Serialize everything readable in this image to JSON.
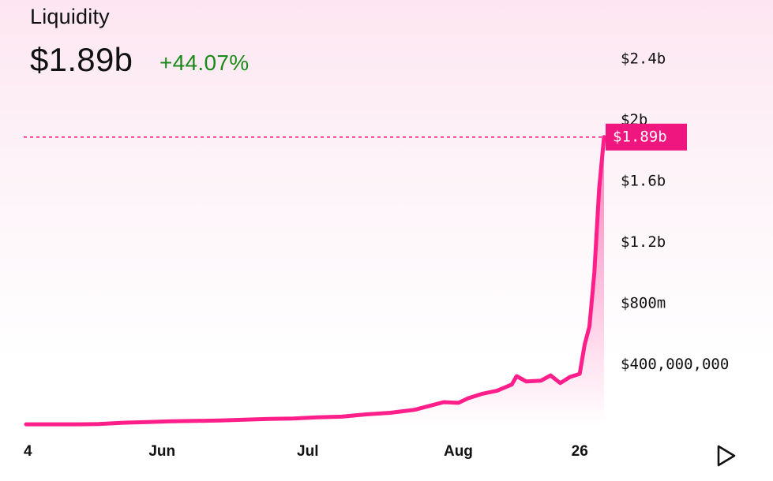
{
  "header": {
    "title": "Liquidity",
    "value": "$1.89b",
    "change": "+44.07%"
  },
  "colors": {
    "line": "#ff1e8a",
    "badge": "#f0167f",
    "change": "#1a8a1a"
  },
  "current_badge": "$1.89b",
  "icons": {
    "play": "play-icon"
  },
  "chart_data": {
    "type": "area",
    "title": "Liquidity",
    "y_ticks": [
      {
        "label": "$400,000,000",
        "value": 400000000
      },
      {
        "label": "$800m",
        "value": 800000000
      },
      {
        "label": "$1.2b",
        "value": 1200000000
      },
      {
        "label": "$1.6b",
        "value": 1600000000
      },
      {
        "label": "$2b",
        "value": 2000000000
      },
      {
        "label": "$2.4b",
        "value": 2400000000
      }
    ],
    "x_ticks": [
      {
        "label": "4",
        "x": "May 4"
      },
      {
        "label": "Jun",
        "x": "Jun 1"
      },
      {
        "label": "Jul",
        "x": "Jul 1"
      },
      {
        "label": "Aug",
        "x": "Aug 1"
      },
      {
        "label": "26",
        "x": "Aug 26"
      }
    ],
    "ylim": [
      0,
      2400000000
    ],
    "current_value": 1890000000,
    "series": [
      {
        "values": [
          {
            "x": "May 4",
            "y": 10000000
          },
          {
            "x": "May 10",
            "y": 10000000
          },
          {
            "x": "May 15",
            "y": 10000000
          },
          {
            "x": "May 19",
            "y": 12000000
          },
          {
            "x": "May 24",
            "y": 20000000
          },
          {
            "x": "May 29",
            "y": 25000000
          },
          {
            "x": "Jun 3",
            "y": 30000000
          },
          {
            "x": "Jun 8",
            "y": 32000000
          },
          {
            "x": "Jun 13",
            "y": 35000000
          },
          {
            "x": "Jun 18",
            "y": 40000000
          },
          {
            "x": "Jun 23",
            "y": 45000000
          },
          {
            "x": "Jun 28",
            "y": 48000000
          },
          {
            "x": "Jul 3",
            "y": 55000000
          },
          {
            "x": "Jul 8",
            "y": 60000000
          },
          {
            "x": "Jul 13",
            "y": 75000000
          },
          {
            "x": "Jul 18",
            "y": 85000000
          },
          {
            "x": "Jul 23",
            "y": 105000000
          },
          {
            "x": "Jul 26",
            "y": 130000000
          },
          {
            "x": "Jul 29",
            "y": 155000000
          },
          {
            "x": "Aug 1",
            "y": 150000000
          },
          {
            "x": "Aug 3",
            "y": 180000000
          },
          {
            "x": "Aug 6",
            "y": 210000000
          },
          {
            "x": "Aug 9",
            "y": 230000000
          },
          {
            "x": "Aug 12",
            "y": 270000000
          },
          {
            "x": "Aug 13",
            "y": 325000000
          },
          {
            "x": "Aug 15",
            "y": 290000000
          },
          {
            "x": "Aug 18",
            "y": 295000000
          },
          {
            "x": "Aug 20",
            "y": 330000000
          },
          {
            "x": "Aug 22",
            "y": 280000000
          },
          {
            "x": "Aug 24",
            "y": 320000000
          },
          {
            "x": "Aug 25",
            "y": 330000000
          },
          {
            "x": "Aug 26",
            "y": 340000000
          },
          {
            "x": "Aug 27",
            "y": 530000000
          },
          {
            "x": "Aug 28",
            "y": 650000000
          },
          {
            "x": "Aug 29",
            "y": 1000000000
          },
          {
            "x": "Aug 30",
            "y": 1550000000
          },
          {
            "x": "Aug 31",
            "y": 1890000000
          }
        ]
      }
    ]
  }
}
